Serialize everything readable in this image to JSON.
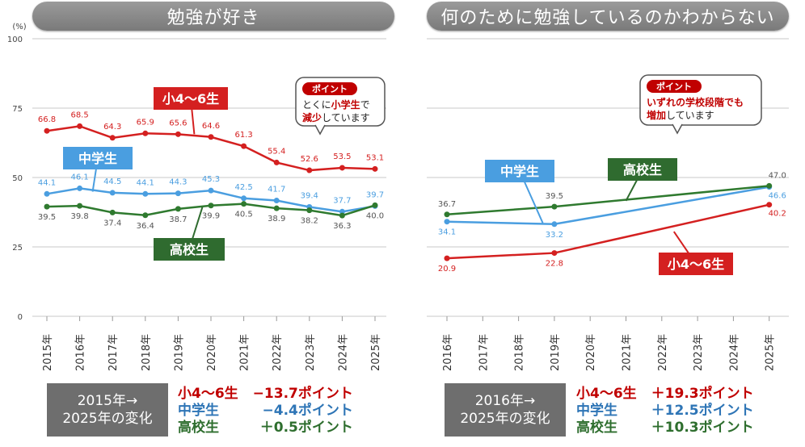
{
  "panels": {
    "left": {
      "title": "勉強が好き",
      "unit": "(%)",
      "summary": {
        "label_line1": "2015年→",
        "label_line2": "2025年の変化",
        "rows": [
          {
            "name": "小4～6生",
            "value": "−13.7ポイント"
          },
          {
            "name": "中学生",
            "value": "−4.4ポイント"
          },
          {
            "name": "高校生",
            "value": "＋0.5ポイント"
          }
        ]
      },
      "point_callout": {
        "badge": "ポイント",
        "line1_pre": "とくに",
        "line1_hl": "小学生",
        "line1_post": "で",
        "line2_hl": "減少",
        "line2_post": "しています"
      }
    },
    "right": {
      "title": "何のために勉強しているのかわからない",
      "summary": {
        "label_line1": "2016年→",
        "label_line2": "2025年の変化",
        "rows": [
          {
            "name": "小4～6生",
            "value": "＋19.3ポイント"
          },
          {
            "name": "中学生",
            "value": "＋12.5ポイント"
          },
          {
            "name": "高校生",
            "value": "＋10.3ポイント"
          }
        ]
      },
      "point_callout": {
        "badge": "ポイント",
        "line1_pre": "いずれの学校段階でも",
        "line2_hl": "増加",
        "line2_post": "しています"
      }
    }
  },
  "colors": {
    "elementary": "#d42020",
    "middle": "#4a9ee0",
    "high": "#2f7a2f",
    "grid": "#c8c8c8"
  },
  "chart_data": [
    {
      "type": "line",
      "title": "勉強が好き",
      "ylabel": "(%)",
      "ylim": [
        0,
        100
      ],
      "yticks": [
        0,
        25,
        50,
        75,
        100
      ],
      "x": [
        "2015年",
        "2016年",
        "2017年",
        "2018年",
        "2019年",
        "2020年",
        "2021年",
        "2022年",
        "2023年",
        "2024年",
        "2025年"
      ],
      "series": [
        {
          "name": "小4～6生",
          "values": [
            66.8,
            68.5,
            64.3,
            65.9,
            65.6,
            64.6,
            61.3,
            55.4,
            52.6,
            53.5,
            53.1
          ]
        },
        {
          "name": "中学生",
          "values": [
            44.1,
            46.1,
            44.5,
            44.1,
            44.3,
            45.3,
            42.5,
            41.7,
            39.4,
            37.7,
            39.7
          ]
        },
        {
          "name": "高校生",
          "values": [
            39.5,
            39.8,
            37.4,
            36.4,
            38.7,
            39.9,
            40.5,
            38.9,
            38.2,
            36.3,
            40.0
          ]
        }
      ]
    },
    {
      "type": "line",
      "title": "何のために勉強しているのかわからない",
      "ylim": [
        0,
        100
      ],
      "x": [
        "2016年",
        "2017年",
        "2018年",
        "2019年",
        "2020年",
        "2021年",
        "2022年",
        "2023年",
        "2024年",
        "2025年"
      ],
      "series": [
        {
          "name": "小4～6生",
          "values": [
            20.9,
            null,
            null,
            22.8,
            null,
            null,
            null,
            null,
            null,
            40.2
          ]
        },
        {
          "name": "中学生",
          "values": [
            34.1,
            null,
            null,
            33.2,
            null,
            null,
            null,
            null,
            null,
            46.6
          ]
        },
        {
          "name": "高校生",
          "values": [
            36.7,
            null,
            null,
            39.5,
            null,
            null,
            null,
            null,
            null,
            47.0
          ]
        }
      ]
    }
  ]
}
